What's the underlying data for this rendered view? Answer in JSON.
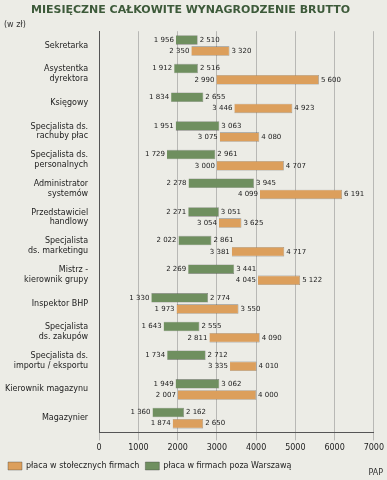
{
  "chart_data": {
    "type": "bar",
    "title": "MIESIĘCZNE CAŁKOWITE WYNAGRODZENIE BRUTTO",
    "xlabel": "(w zł)",
    "annotations": [
      "PAP"
    ],
    "orientation": "horizontal",
    "categories": [
      "Sekretarka",
      "Asystentka dyrektora",
      "Księgowy",
      "Specjalista ds. rachuby płac",
      "Specjalista ds. personalnych",
      "Administrator systemów",
      "Przedstawiciel handlowy",
      "Specjalista ds. marketingu",
      "Mistrz - kierownik grupy",
      "Inspektor BHP",
      "Specjalista ds. zakupów",
      "Specjalista ds. importu / eksportu",
      "Kierownik magazynu",
      "Magazynier"
    ],
    "series": [
      {
        "name": "płaca w firmach poza Warszawą",
        "color": "#6f8f5f",
        "values": [
          [
            1956,
            2510
          ],
          [
            1912,
            2516
          ],
          [
            1834,
            2655
          ],
          [
            1951,
            3063
          ],
          [
            1729,
            2961
          ],
          [
            2278,
            3945
          ],
          [
            2271,
            3051
          ],
          [
            2022,
            2861
          ],
          [
            2269,
            3441
          ],
          [
            1330,
            2774
          ],
          [
            1643,
            2555
          ],
          [
            1734,
            2712
          ],
          [
            1949,
            3062
          ],
          [
            1360,
            2162
          ]
        ],
        "value_labels": [
          [
            "1 956",
            "2 510"
          ],
          [
            "1 912",
            "2 516"
          ],
          [
            "1 834",
            "2 655"
          ],
          [
            "1 951",
            "3 063"
          ],
          [
            "1 729",
            "2 961"
          ],
          [
            "2 278",
            "3 945"
          ],
          [
            "2 271",
            "3 051"
          ],
          [
            "2 022",
            "2 861"
          ],
          [
            "2 269",
            "3 441"
          ],
          [
            "1 330",
            "2 774"
          ],
          [
            "1 643",
            "2 555"
          ],
          [
            "1 734",
            "2 712"
          ],
          [
            "1 949",
            "3 062"
          ],
          [
            "1 360",
            "2 162"
          ]
        ]
      },
      {
        "name": "płaca w stołecznych firmach",
        "color": "#dc9f5c",
        "values": [
          [
            2350,
            3320
          ],
          [
            2990,
            5600
          ],
          [
            3446,
            4923
          ],
          [
            3075,
            4080
          ],
          [
            3000,
            4707
          ],
          [
            4099,
            6191
          ],
          [
            3054,
            3625
          ],
          [
            3381,
            4717
          ],
          [
            4045,
            5122
          ],
          [
            1973,
            3550
          ],
          [
            2811,
            4090
          ],
          [
            3335,
            4010
          ],
          [
            2007,
            4000
          ],
          [
            1874,
            2650
          ]
        ],
        "value_labels": [
          [
            "2 350",
            "3 320"
          ],
          [
            "2 990",
            "5 600"
          ],
          [
            "3 446",
            "4 923"
          ],
          [
            "3 075",
            "4 080"
          ],
          [
            "3 000",
            "4 707"
          ],
          [
            "4 099",
            "6 191"
          ],
          [
            "3 054",
            "3 625"
          ],
          [
            "3 381",
            "4 717"
          ],
          [
            "4 045",
            "5 122"
          ],
          [
            "1 973",
            "3 550"
          ],
          [
            "2 811",
            "4 090"
          ],
          [
            "3 335",
            "4 010"
          ],
          [
            "2 007",
            "4 000"
          ],
          [
            "1 874",
            "2 650"
          ]
        ]
      }
    ],
    "xlim": [
      0,
      7000
    ],
    "xticks": [
      0,
      1000,
      2000,
      3000,
      4000,
      5000,
      6000,
      7000
    ],
    "grid": true,
    "legend": "bottom-left",
    "data_labels": true
  }
}
